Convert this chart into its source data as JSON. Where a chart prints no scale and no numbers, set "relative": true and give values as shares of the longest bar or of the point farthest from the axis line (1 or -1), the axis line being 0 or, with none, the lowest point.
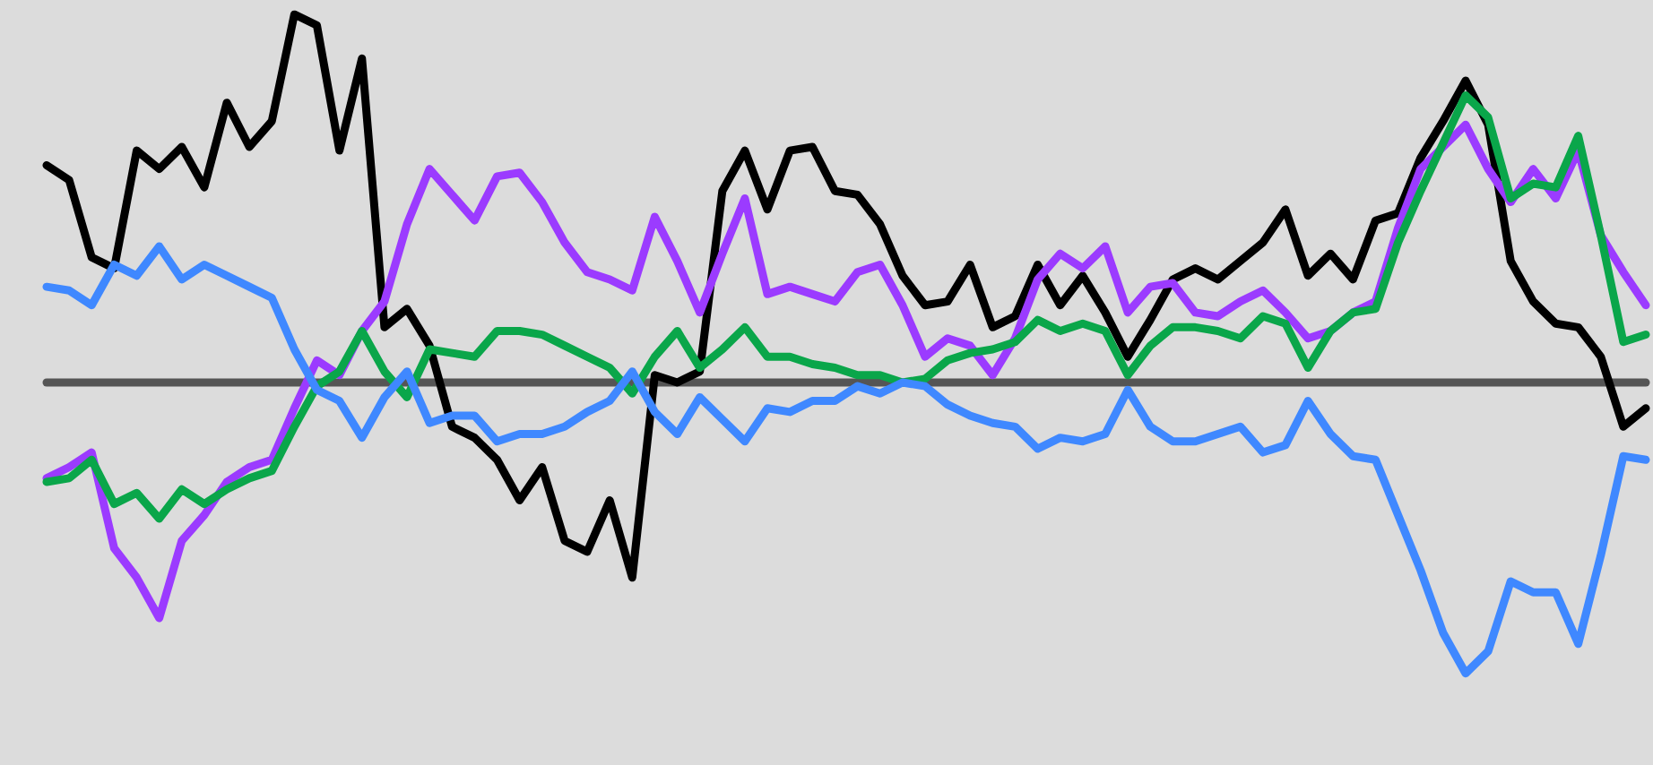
{
  "chart_data": {
    "type": "line",
    "relative": true,
    "marker": "none",
    "line_style": "solid",
    "categories": [
      null,
      null,
      null,
      null,
      null,
      null,
      null,
      null,
      null,
      null,
      null,
      null,
      null,
      null,
      null,
      null,
      null,
      null,
      null,
      null,
      null,
      null,
      null,
      null,
      null,
      null,
      null,
      null,
      null,
      null,
      null,
      null,
      null,
      null,
      null,
      null,
      null,
      null,
      null,
      null,
      null,
      null,
      null,
      null,
      null,
      null,
      null,
      null,
      null,
      null,
      null,
      null,
      null,
      null,
      null,
      null,
      null,
      null,
      null,
      null,
      null,
      null,
      null,
      null,
      null,
      null,
      null,
      null,
      null,
      null,
      null,
      null
    ],
    "series": [
      {
        "color": "#000000",
        "values": [
          0.59,
          0.55,
          0.34,
          0.31,
          0.63,
          0.58,
          0.64,
          0.53,
          0.76,
          0.64,
          0.71,
          1.0,
          0.97,
          0.63,
          0.88,
          0.15,
          0.2,
          0.1,
          -0.12,
          -0.15,
          -0.21,
          -0.32,
          -0.23,
          -0.43,
          -0.46,
          -0.32,
          -0.53,
          0.02,
          0,
          0.03,
          0.52,
          0.63,
          0.47,
          0.63,
          0.64,
          0.52,
          0.51,
          0.43,
          0.29,
          0.21,
          0.22,
          0.32,
          0.15,
          0.18,
          0.32,
          0.21,
          0.29,
          0.19,
          0.07,
          0.17,
          0.28,
          0.31,
          0.28,
          0.33,
          0.38,
          0.47,
          0.29,
          0.35,
          0.28,
          0.44,
          0.46,
          0.61,
          0.71,
          0.82,
          0.7,
          0.33,
          0.22,
          0.16,
          0.15,
          0.07,
          -0.12,
          -0.07
        ]
      },
      {
        "color": "#9b3bff",
        "values": [
          -0.26,
          -0.23,
          -0.19,
          -0.45,
          -0.53,
          -0.64,
          -0.43,
          -0.36,
          -0.27,
          -0.23,
          -0.21,
          -0.07,
          0.06,
          0.02,
          0.14,
          0.22,
          0.43,
          0.58,
          0.51,
          0.44,
          0.56,
          0.57,
          0.49,
          0.38,
          0.3,
          0.28,
          0.25,
          0.45,
          0.33,
          0.19,
          0.35,
          0.5,
          0.24,
          0.26,
          0.24,
          0.22,
          0.3,
          0.32,
          0.21,
          0.07,
          0.12,
          0.1,
          0.02,
          0.12,
          0.28,
          0.35,
          0.31,
          0.37,
          0.19,
          0.26,
          0.27,
          0.19,
          0.18,
          0.22,
          0.25,
          0.19,
          0.12,
          0.14,
          0.19,
          0.22,
          0.42,
          0.58,
          0.64,
          0.7,
          0.58,
          0.49,
          0.58,
          0.5,
          0.63,
          0.4,
          0.3,
          0.21
        ]
      },
      {
        "color": "#0aa64a",
        "values": [
          -0.27,
          -0.26,
          -0.21,
          -0.33,
          -0.3,
          -0.37,
          -0.29,
          -0.33,
          -0.29,
          -0.26,
          -0.24,
          -0.12,
          -0.01,
          0.03,
          0.14,
          0.03,
          -0.04,
          0.09,
          0.08,
          0.07,
          0.14,
          0.14,
          0.13,
          0.1,
          0.07,
          0.04,
          -0.03,
          0.07,
          0.14,
          0.04,
          0.09,
          0.15,
          0.07,
          0.07,
          0.05,
          0.04,
          0.02,
          0.02,
          0,
          0.01,
          0.06,
          0.08,
          0.09,
          0.11,
          0.17,
          0.14,
          0.16,
          0.14,
          0.02,
          0.1,
          0.15,
          0.15,
          0.14,
          0.12,
          0.18,
          0.16,
          0.04,
          0.14,
          0.19,
          0.2,
          0.38,
          0.52,
          0.65,
          0.78,
          0.72,
          0.5,
          0.54,
          0.53,
          0.67,
          0.4,
          0.11,
          0.13
        ]
      },
      {
        "color": "#3f88ff",
        "values": [
          0.26,
          0.25,
          0.21,
          0.32,
          0.29,
          0.37,
          0.28,
          0.32,
          0.29,
          0.26,
          0.23,
          0.09,
          -0.02,
          -0.05,
          -0.15,
          -0.04,
          0.03,
          -0.11,
          -0.09,
          -0.09,
          -0.16,
          -0.14,
          -0.14,
          -0.12,
          -0.08,
          -0.05,
          0.03,
          -0.08,
          -0.14,
          -0.04,
          -0.1,
          -0.16,
          -0.07,
          -0.08,
          -0.05,
          -0.05,
          -0.01,
          -0.03,
          0,
          -0.01,
          -0.06,
          -0.09,
          -0.11,
          -0.12,
          -0.18,
          -0.15,
          -0.16,
          -0.14,
          -0.02,
          -0.12,
          -0.16,
          -0.16,
          -0.14,
          -0.12,
          -0.19,
          -0.17,
          -0.05,
          -0.14,
          -0.2,
          -0.21,
          -0.36,
          -0.51,
          -0.68,
          -0.79,
          -0.73,
          -0.54,
          -0.57,
          -0.57,
          -0.71,
          -0.47,
          -0.2,
          -0.21
        ]
      }
    ]
  }
}
